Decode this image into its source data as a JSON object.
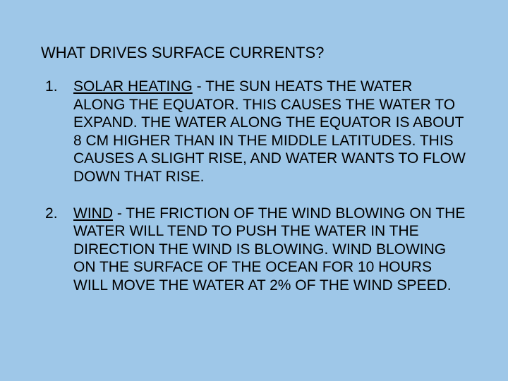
{
  "slide": {
    "background_color": "#9ec7e8",
    "text_color": "#000000",
    "title_fontsize": 22,
    "body_fontsize": 21,
    "font_family": "Arial",
    "title": "WHAT DRIVES SURFACE CURRENTS?",
    "items": [
      {
        "term": "SOLAR HEATING",
        "body": " - THE SUN HEATS THE WATER ALONG THE EQUATOR.  THIS CAUSES THE WATER TO EXPAND.  THE WATER ALONG THE EQUATOR IS ABOUT 8 CM HIGHER THAN IN THE MIDDLE LATITUDES.  THIS CAUSES A SLIGHT RISE, AND WATER WANTS TO FLOW DOWN THAT RISE."
      },
      {
        "term": "WIND",
        "body": " - THE FRICTION OF THE WIND BLOWING ON THE WATER WILL TEND TO PUSH THE WATER IN THE DIRECTION THE WIND IS BLOWING.  WIND BLOWING ON THE SURFACE OF THE OCEAN FOR 10 HOURS WILL MOVE THE WATER AT 2% OF THE WIND SPEED."
      }
    ]
  }
}
